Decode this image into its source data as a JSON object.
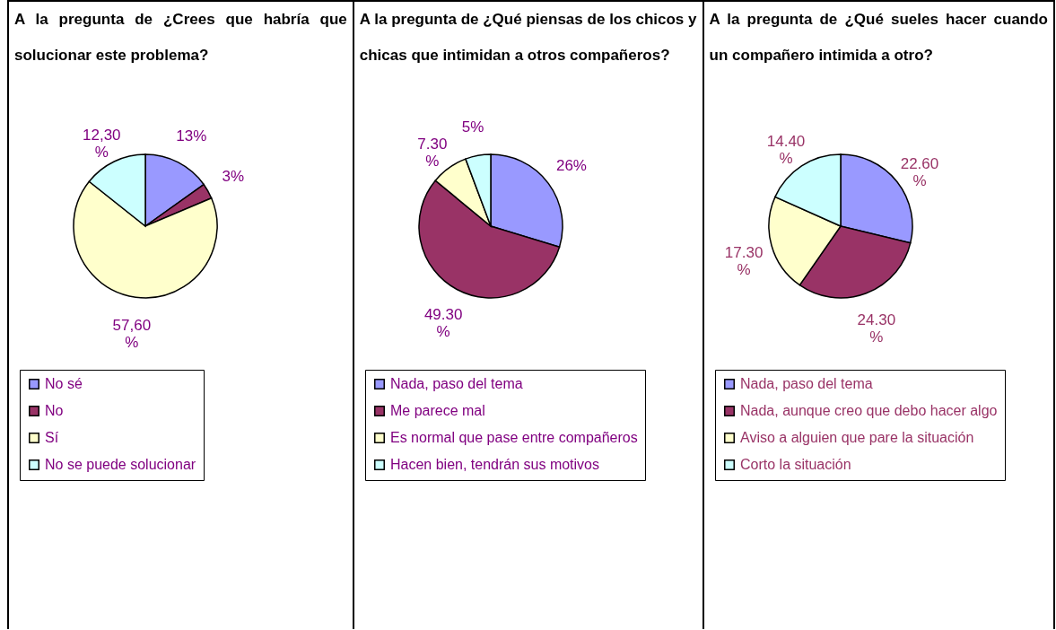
{
  "chart_data": [
    {
      "type": "pie",
      "title": "A la pregunta de ¿Crees que habría que solucionar este problema?",
      "categories": [
        "No sé",
        "No",
        "Sí",
        "No se puede solucionar"
      ],
      "values": [
        13,
        3,
        57.6,
        12.3
      ],
      "colors": [
        "#9999ff",
        "#993366",
        "#ffffcc",
        "#ccffff"
      ],
      "value_labels": [
        "13%",
        "3%",
        "57,60 %",
        "12,30 %"
      ],
      "legend": "bottom"
    },
    {
      "type": "pie",
      "title": "A la pregunta de ¿Qué piensas de los chicos y chicas que intimidan a otros compañeros?",
      "categories": [
        "Nada, paso del tema",
        "Me parece mal",
        "Es normal que pase entre compañeros",
        "Hacen bien, tendrán sus motivos"
      ],
      "values": [
        26,
        49.3,
        7.3,
        5
      ],
      "colors": [
        "#9999ff",
        "#993366",
        "#ffffcc",
        "#ccffff"
      ],
      "value_labels": [
        "26%",
        "49.30 %",
        "7.30 %",
        "5%"
      ],
      "legend": "bottom"
    },
    {
      "type": "pie",
      "title": "A la pregunta de ¿Qué sueles hacer cuando un compañero intimida a otro?",
      "categories": [
        "Nada, paso del tema",
        "Nada, aunque creo que debo hacer algo",
        "Aviso a alguien que pare la situación",
        "Corto la situación"
      ],
      "values": [
        22.6,
        24.3,
        17.3,
        14.4
      ],
      "colors": [
        "#9999ff",
        "#993366",
        "#ffffcc",
        "#ccffff"
      ],
      "value_labels": [
        "22.60 %",
        "24.30 %",
        "17.30 %",
        "14.40 %"
      ],
      "legend": "bottom"
    }
  ]
}
